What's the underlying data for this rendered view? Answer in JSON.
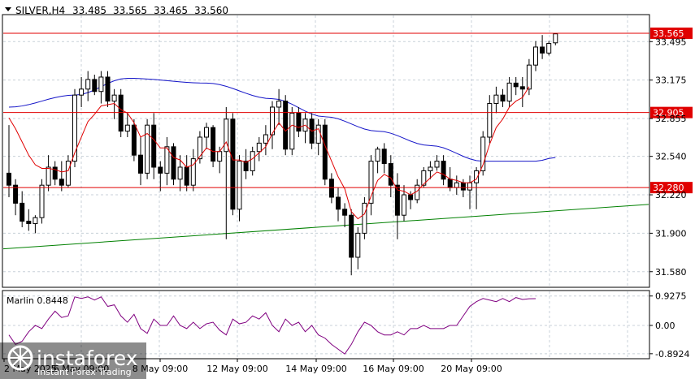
{
  "chart_data": {
    "type": "candlestick",
    "header": {
      "symbol": "SILVER,H4",
      "open": "33.485",
      "high": "33.565",
      "low": "33.465",
      "close": "33.560"
    },
    "price_axis": {
      "range": [
        31.45,
        33.72
      ],
      "ticks": [
        "33.495",
        "33.175",
        "32.855",
        "32.540",
        "32.220",
        "31.900",
        "31.580"
      ]
    },
    "levels": [
      {
        "label": "33.565",
        "value": 33.565
      },
      {
        "label": "32.905",
        "value": 32.905
      },
      {
        "label": "32.280",
        "value": 32.28
      }
    ],
    "time_axis": {
      "labels": [
        "2 May 2025",
        "6 May 09:00",
        "8 May 09:00",
        "12 May 09:00",
        "14 May 09:00",
        "16 May 09:00",
        "20 May 09:00"
      ]
    },
    "candles": [
      [
        32.4,
        32.8,
        32.2,
        32.3
      ],
      [
        32.3,
        32.35,
        32.05,
        32.15
      ],
      [
        32.15,
        32.25,
        31.95,
        32.0
      ],
      [
        32.0,
        32.1,
        31.92,
        31.98
      ],
      [
        31.98,
        32.05,
        31.9,
        32.03
      ],
      [
        32.03,
        32.35,
        31.98,
        32.3
      ],
      [
        32.3,
        32.55,
        32.25,
        32.45
      ],
      [
        32.45,
        32.5,
        32.3,
        32.35
      ],
      [
        32.35,
        32.5,
        32.25,
        32.3
      ],
      [
        32.3,
        32.55,
        32.28,
        32.5
      ],
      [
        32.5,
        33.1,
        32.45,
        33.05
      ],
      [
        33.05,
        33.2,
        32.95,
        33.1
      ],
      [
        33.1,
        33.25,
        33.0,
        33.18
      ],
      [
        33.18,
        33.22,
        33.05,
        33.08
      ],
      [
        33.08,
        33.25,
        32.98,
        33.2
      ],
      [
        33.2,
        33.25,
        32.95,
        33.0
      ],
      [
        33.0,
        33.1,
        32.85,
        33.05
      ],
      [
        33.05,
        33.1,
        32.7,
        32.75
      ],
      [
        32.75,
        32.9,
        32.7,
        32.8
      ],
      [
        32.8,
        32.85,
        32.5,
        32.55
      ],
      [
        32.55,
        32.7,
        32.3,
        32.4
      ],
      [
        32.4,
        32.85,
        32.35,
        32.8
      ],
      [
        32.8,
        32.9,
        32.35,
        32.45
      ],
      [
        32.45,
        32.5,
        32.25,
        32.4
      ],
      [
        32.4,
        32.7,
        32.3,
        32.62
      ],
      [
        32.62,
        32.65,
        32.3,
        32.35
      ],
      [
        32.35,
        32.55,
        32.25,
        32.45
      ],
      [
        32.45,
        32.55,
        32.25,
        32.3
      ],
      [
        32.3,
        32.6,
        32.25,
        32.52
      ],
      [
        32.52,
        32.75,
        32.48,
        32.7
      ],
      [
        32.7,
        32.82,
        32.6,
        32.78
      ],
      [
        32.78,
        32.8,
        32.45,
        32.5
      ],
      [
        32.5,
        32.62,
        32.4,
        32.58
      ],
      [
        32.58,
        32.95,
        31.85,
        32.85
      ],
      [
        32.85,
        32.9,
        32.05,
        32.1
      ],
      [
        32.1,
        32.55,
        32.0,
        32.5
      ],
      [
        32.5,
        32.6,
        32.35,
        32.42
      ],
      [
        32.42,
        32.62,
        32.38,
        32.58
      ],
      [
        32.58,
        32.7,
        32.5,
        32.65
      ],
      [
        32.65,
        32.8,
        32.55,
        32.72
      ],
      [
        32.72,
        33.0,
        32.6,
        32.95
      ],
      [
        32.95,
        33.1,
        32.8,
        33.0
      ],
      [
        33.0,
        33.05,
        32.55,
        32.6
      ],
      [
        32.6,
        32.95,
        32.55,
        32.9
      ],
      [
        32.9,
        32.95,
        32.7,
        32.75
      ],
      [
        32.75,
        32.9,
        32.65,
        32.85
      ],
      [
        32.85,
        32.9,
        32.6,
        32.65
      ],
      [
        32.65,
        32.85,
        32.55,
        32.8
      ],
      [
        32.8,
        32.85,
        32.3,
        32.35
      ],
      [
        32.35,
        32.4,
        32.15,
        32.2
      ],
      [
        32.2,
        32.28,
        32.0,
        32.1
      ],
      [
        32.1,
        32.15,
        31.95,
        32.05
      ],
      [
        32.05,
        32.1,
        31.55,
        31.7
      ],
      [
        31.7,
        31.95,
        31.6,
        31.9
      ],
      [
        31.9,
        32.2,
        31.85,
        32.15
      ],
      [
        32.15,
        32.55,
        32.05,
        32.5
      ],
      [
        32.5,
        32.62,
        32.4,
        32.6
      ],
      [
        32.6,
        32.65,
        32.4,
        32.48
      ],
      [
        32.48,
        32.55,
        32.2,
        32.3
      ],
      [
        32.3,
        32.4,
        31.85,
        32.05
      ],
      [
        32.05,
        32.3,
        32.0,
        32.22
      ],
      [
        32.22,
        32.25,
        32.1,
        32.18
      ],
      [
        32.18,
        32.35,
        32.15,
        32.3
      ],
      [
        32.3,
        32.45,
        32.28,
        32.42
      ],
      [
        32.42,
        32.5,
        32.35,
        32.45
      ],
      [
        32.45,
        32.55,
        32.42,
        32.5
      ],
      [
        32.5,
        32.55,
        32.3,
        32.35
      ],
      [
        32.35,
        32.45,
        32.25,
        32.28
      ],
      [
        32.28,
        32.38,
        32.22,
        32.32
      ],
      [
        32.32,
        32.35,
        32.2,
        32.26
      ],
      [
        32.26,
        32.38,
        32.1,
        32.32
      ],
      [
        32.32,
        32.45,
        32.1,
        32.42
      ],
      [
        32.42,
        32.75,
        32.38,
        32.7
      ],
      [
        32.7,
        33.05,
        32.65,
        32.98
      ],
      [
        32.98,
        33.12,
        32.9,
        33.05
      ],
      [
        33.05,
        33.1,
        32.95,
        33.0
      ],
      [
        33.0,
        33.2,
        32.95,
        33.15
      ],
      [
        33.15,
        33.2,
        33.05,
        33.12
      ],
      [
        33.12,
        33.2,
        32.95,
        33.1
      ],
      [
        33.1,
        33.35,
        33.05,
        33.3
      ],
      [
        33.3,
        33.5,
        33.25,
        33.45
      ],
      [
        33.45,
        33.55,
        33.35,
        33.4
      ],
      [
        33.4,
        33.5,
        33.38,
        33.48
      ],
      [
        33.485,
        33.565,
        33.465,
        33.56
      ]
    ],
    "ma_red": [
      32.86,
      32.77,
      32.66,
      32.55,
      32.47,
      32.44,
      32.44,
      32.43,
      32.41,
      32.42,
      32.57,
      32.7,
      32.83,
      32.89,
      32.96,
      32.97,
      32.98,
      32.93,
      32.9,
      32.82,
      32.7,
      32.73,
      32.68,
      32.61,
      32.61,
      32.53,
      32.51,
      32.45,
      32.47,
      32.54,
      32.61,
      32.58,
      32.58,
      32.66,
      32.51,
      32.51,
      32.49,
      32.52,
      32.57,
      32.62,
      32.73,
      32.82,
      32.75,
      32.8,
      32.78,
      32.8,
      32.75,
      32.77,
      32.63,
      32.5,
      32.37,
      32.27,
      32.08,
      32.02,
      32.06,
      32.21,
      32.34,
      32.39,
      32.36,
      32.26,
      32.25,
      32.22,
      32.25,
      32.31,
      32.36,
      32.41,
      32.39,
      32.35,
      32.34,
      32.32,
      32.32,
      32.35,
      32.47,
      32.64,
      32.78,
      32.85,
      32.95,
      33.0,
      33.03,
      33.12
    ],
    "ma_blue_anchors": [
      [
        0,
        32.95
      ],
      [
        10,
        33.05
      ],
      [
        18,
        33.19
      ],
      [
        30,
        33.15
      ],
      [
        40,
        33.02
      ],
      [
        48,
        32.87
      ],
      [
        56,
        32.75
      ],
      [
        64,
        32.63
      ],
      [
        72,
        32.5
      ],
      [
        80,
        32.5
      ],
      [
        83,
        32.53
      ]
    ],
    "trendline": {
      "from": 31.77,
      "to": 32.14
    },
    "indicator": {
      "label": "Marlin 0.8448",
      "ticks": [
        "0.9275",
        "0.00",
        "-0.8924"
      ],
      "range": [
        -1.05,
        1.1
      ],
      "values": [
        -0.3,
        -0.6,
        -0.5,
        -0.2,
        0.0,
        -0.1,
        0.2,
        0.45,
        0.25,
        0.3,
        0.9,
        0.85,
        0.9,
        0.8,
        0.9,
        0.6,
        0.65,
        0.3,
        0.1,
        0.35,
        -0.1,
        -0.25,
        0.2,
        0.0,
        0.0,
        0.3,
        0.0,
        -0.1,
        0.1,
        -0.1,
        0.05,
        0.1,
        -0.15,
        -0.3,
        0.2,
        0.05,
        0.1,
        0.3,
        0.2,
        0.4,
        0.0,
        -0.2,
        0.2,
        0.0,
        0.1,
        -0.2,
        0.0,
        -0.3,
        -0.4,
        -0.6,
        -0.75,
        -0.9,
        -0.6,
        -0.2,
        0.1,
        0.0,
        -0.2,
        -0.3,
        -0.3,
        -0.2,
        -0.3,
        -0.1,
        -0.1,
        0.0,
        -0.1,
        -0.1,
        -0.1,
        0.0,
        0.0,
        0.3,
        0.6,
        0.75,
        0.85,
        0.8,
        0.75,
        0.85,
        0.75,
        0.88,
        0.82,
        0.84,
        0.8448
      ]
    }
  },
  "watermark": {
    "brand": "instaforex",
    "tagline": "Instant Forex Trading"
  },
  "colors": {
    "bull": "#ffffff",
    "bear": "#000000",
    "level": "#e00000",
    "ma_red": "#e00000",
    "ma_blue": "#1414c8",
    "trend": "#008000",
    "indicator": "#800080",
    "grid": "#c8d0d8"
  }
}
